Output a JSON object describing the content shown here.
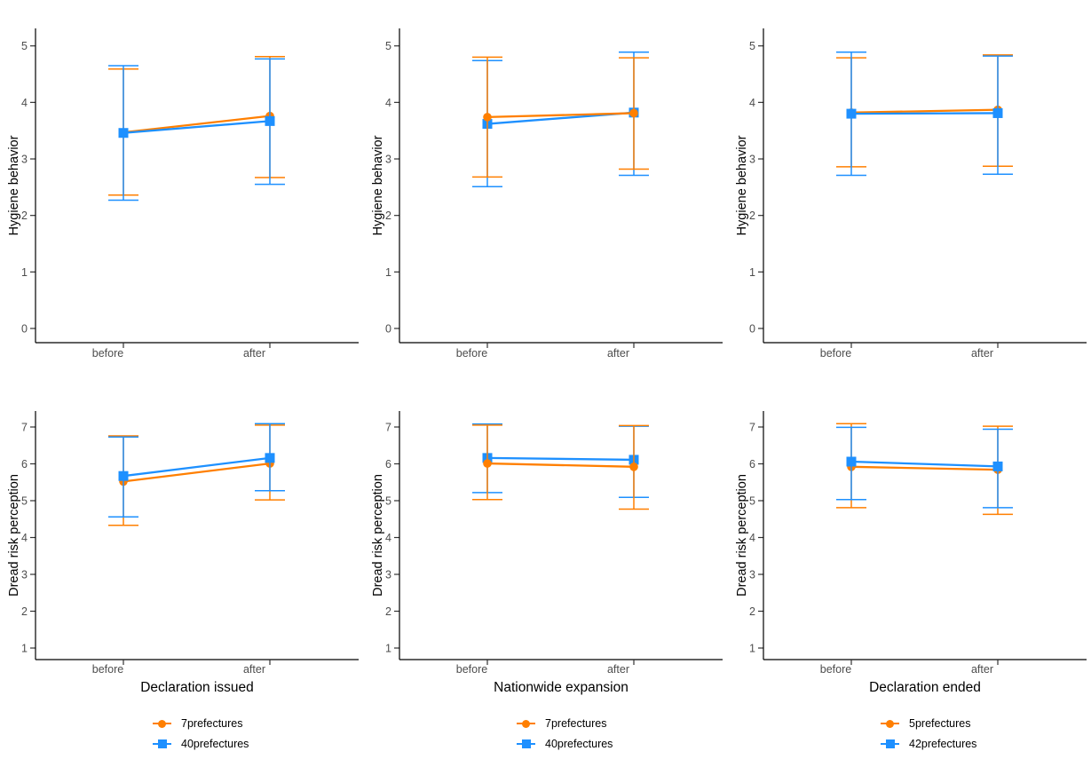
{
  "colors": {
    "orange": "#FF7F00",
    "blue": "#1E90FF",
    "axis_line": "#000000",
    "tick_mark": "#333333",
    "tick_text": "#4D4D4D",
    "background": "#FFFFFF"
  },
  "chart_data": [
    {
      "type": "line",
      "id": "hygiene-declaration-issued",
      "row": "top",
      "ylabel": "Hygiene behavior",
      "xlabel": "",
      "ylim": [
        0,
        5.3
      ],
      "yticks": [
        0,
        1,
        2,
        3,
        4,
        5
      ],
      "grid": false,
      "categories": [
        "before",
        "after"
      ],
      "error_bars": true,
      "top_series": 1,
      "series": [
        {
          "name": "7prefectures",
          "color": "orange",
          "marker": "circle",
          "values": [
            3.47,
            3.76
          ],
          "err_low": [
            2.36,
            2.67
          ],
          "err_high": [
            4.59,
            4.81
          ]
        },
        {
          "name": "40prefectures",
          "color": "blue",
          "marker": "square",
          "values": [
            3.46,
            3.67
          ],
          "err_low": [
            2.27,
            2.55
          ],
          "err_high": [
            4.65,
            4.77
          ]
        }
      ]
    },
    {
      "type": "line",
      "id": "hygiene-nationwide-expansion",
      "row": "top",
      "ylabel": "Hygiene behavior",
      "xlabel": "",
      "ylim": [
        0,
        5.3
      ],
      "yticks": [
        0,
        1,
        2,
        3,
        4,
        5
      ],
      "grid": false,
      "categories": [
        "before",
        "after"
      ],
      "error_bars": true,
      "top_series": 0,
      "series": [
        {
          "name": "7prefectures",
          "color": "orange",
          "marker": "circle",
          "values": [
            3.74,
            3.81
          ],
          "err_low": [
            2.68,
            2.82
          ],
          "err_high": [
            4.8,
            4.79
          ]
        },
        {
          "name": "40prefectures",
          "color": "blue",
          "marker": "square",
          "values": [
            3.62,
            3.82
          ],
          "err_low": [
            2.51,
            2.71
          ],
          "err_high": [
            4.74,
            4.89
          ]
        }
      ]
    },
    {
      "type": "line",
      "id": "hygiene-declaration-ended",
      "row": "top",
      "ylabel": "Hygiene behavior",
      "xlabel": "",
      "ylim": [
        0,
        5.3
      ],
      "yticks": [
        0,
        1,
        2,
        3,
        4,
        5
      ],
      "grid": false,
      "categories": [
        "before",
        "after"
      ],
      "error_bars": true,
      "top_series": 1,
      "series": [
        {
          "name": "5prefectures",
          "color": "orange",
          "marker": "circle",
          "values": [
            3.82,
            3.87
          ],
          "err_low": [
            2.86,
            2.87
          ],
          "err_high": [
            4.79,
            4.84
          ]
        },
        {
          "name": "42prefectures",
          "color": "blue",
          "marker": "square",
          "values": [
            3.8,
            3.81
          ],
          "err_low": [
            2.71,
            2.73
          ],
          "err_high": [
            4.89,
            4.82
          ]
        }
      ]
    },
    {
      "type": "line",
      "id": "dread-declaration-issued",
      "row": "bottom",
      "ylabel": "Dread risk perception",
      "xlabel": "Declaration issued",
      "ylim": [
        0.7,
        7.3
      ],
      "yticks": [
        1,
        2,
        3,
        4,
        5,
        6,
        7
      ],
      "grid": false,
      "categories": [
        "before",
        "after"
      ],
      "error_bars": true,
      "top_series": 1,
      "legend_position": "bottom",
      "series": [
        {
          "name": "7prefectures",
          "color": "orange",
          "marker": "circle",
          "values": [
            5.52,
            6.01
          ],
          "err_low": [
            4.33,
            5.02
          ],
          "err_high": [
            6.76,
            7.05
          ]
        },
        {
          "name": "40prefectures",
          "color": "blue",
          "marker": "square",
          "values": [
            5.67,
            6.16
          ],
          "err_low": [
            4.56,
            5.27
          ],
          "err_high": [
            6.73,
            7.09
          ]
        }
      ]
    },
    {
      "type": "line",
      "id": "dread-nationwide-expansion",
      "row": "bottom",
      "ylabel": "Dread risk perception",
      "xlabel": "Nationwide expansion",
      "ylim": [
        0.7,
        7.3
      ],
      "yticks": [
        1,
        2,
        3,
        4,
        5,
        6,
        7
      ],
      "grid": false,
      "categories": [
        "before",
        "after"
      ],
      "error_bars": true,
      "top_series": 0,
      "legend_position": "bottom",
      "series": [
        {
          "name": "7prefectures",
          "color": "orange",
          "marker": "circle",
          "values": [
            6.01,
            5.92
          ],
          "err_low": [
            5.03,
            4.77
          ],
          "err_high": [
            7.05,
            7.04
          ]
        },
        {
          "name": "40prefectures",
          "color": "blue",
          "marker": "square",
          "values": [
            6.16,
            6.11
          ],
          "err_low": [
            5.22,
            5.09
          ],
          "err_high": [
            7.08,
            7.02
          ]
        }
      ]
    },
    {
      "type": "line",
      "id": "dread-declaration-ended",
      "row": "bottom",
      "ylabel": "Dread risk perception",
      "xlabel": "Declaration ended",
      "ylim": [
        0.7,
        7.3
      ],
      "yticks": [
        1,
        2,
        3,
        4,
        5,
        6,
        7
      ],
      "grid": false,
      "categories": [
        "before",
        "after"
      ],
      "error_bars": true,
      "top_series": 1,
      "legend_position": "bottom",
      "series": [
        {
          "name": "5prefectures",
          "color": "orange",
          "marker": "circle",
          "values": [
            5.92,
            5.84
          ],
          "err_low": [
            4.81,
            4.63
          ],
          "err_high": [
            7.09,
            7.02
          ]
        },
        {
          "name": "42prefectures",
          "color": "blue",
          "marker": "square",
          "values": [
            6.06,
            5.93
          ],
          "err_low": [
            5.03,
            4.81
          ],
          "err_high": [
            6.99,
            6.94
          ]
        }
      ]
    }
  ]
}
